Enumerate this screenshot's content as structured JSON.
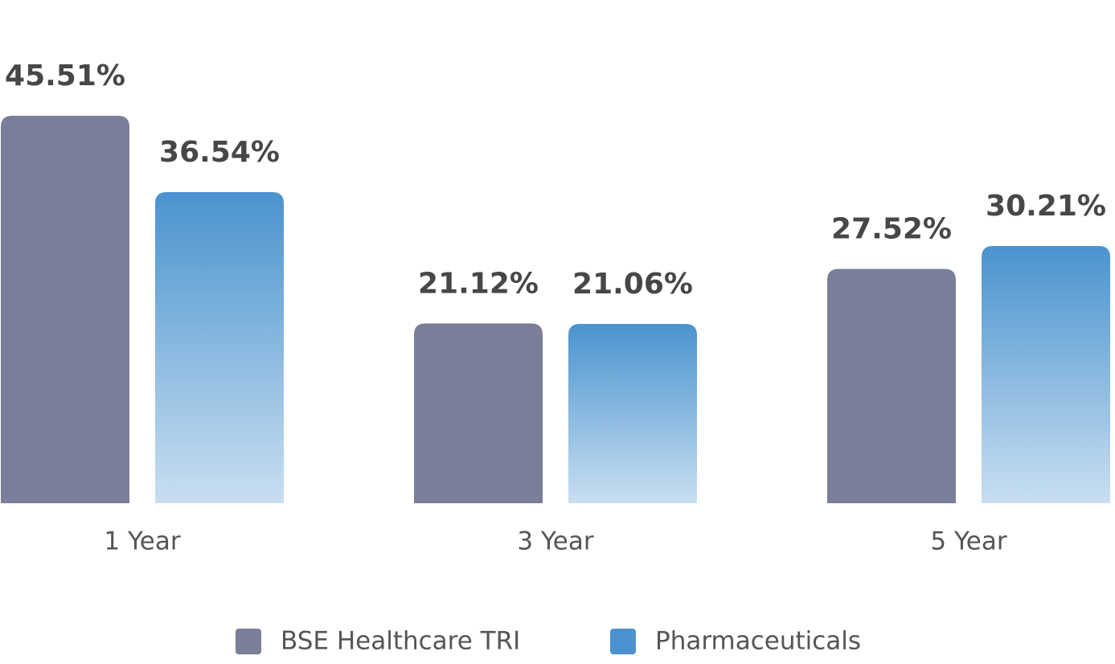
{
  "chart_data": {
    "type": "bar",
    "categories": [
      "1 Year",
      "3 Year",
      "5 Year"
    ],
    "series": [
      {
        "name": "BSE Healthcare TRI",
        "color": "#7b7e98",
        "values": [
          45.51,
          21.12,
          27.52
        ],
        "value_labels": [
          "45.51%",
          "21.12%",
          "27.52%"
        ]
      },
      {
        "name": "Pharmaceuticals",
        "color": "#4a93cf",
        "values": [
          36.54,
          21.06,
          30.21
        ],
        "value_labels": [
          "36.54%",
          "21.06%",
          "30.21%"
        ]
      }
    ]
  }
}
